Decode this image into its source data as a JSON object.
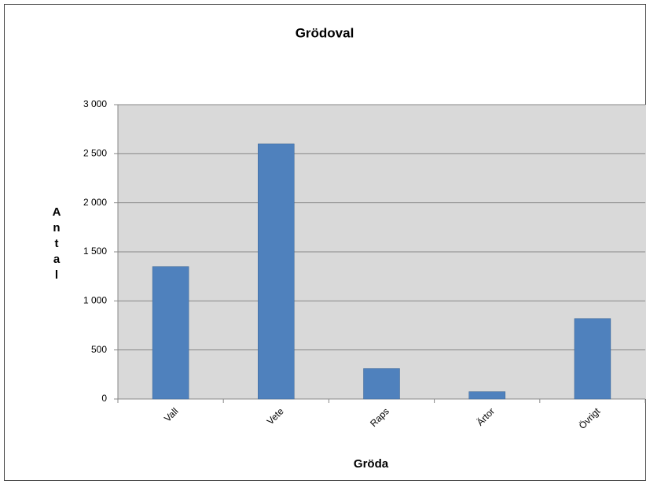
{
  "chart_data": {
    "type": "bar",
    "title": "Grödoval",
    "x_label": "Gröda",
    "y_label": "Antal",
    "categories": [
      "Vall",
      "Vete",
      "Raps",
      "Ärtor",
      "Övrigt"
    ],
    "values": [
      1350,
      2600,
      310,
      75,
      820
    ],
    "color": "#4f81bd",
    "ylim": [
      0,
      3000
    ],
    "yticks": [
      0,
      500,
      {
        "value": 1000,
        "label": "1 000"
      },
      {
        "value": 1500,
        "label": "1 500"
      },
      {
        "value": 2000,
        "label": "2 000"
      },
      {
        "value": 2500,
        "label": "2 500"
      },
      {
        "value": 3000,
        "label": "3 000"
      }
    ],
    "grid": true
  }
}
